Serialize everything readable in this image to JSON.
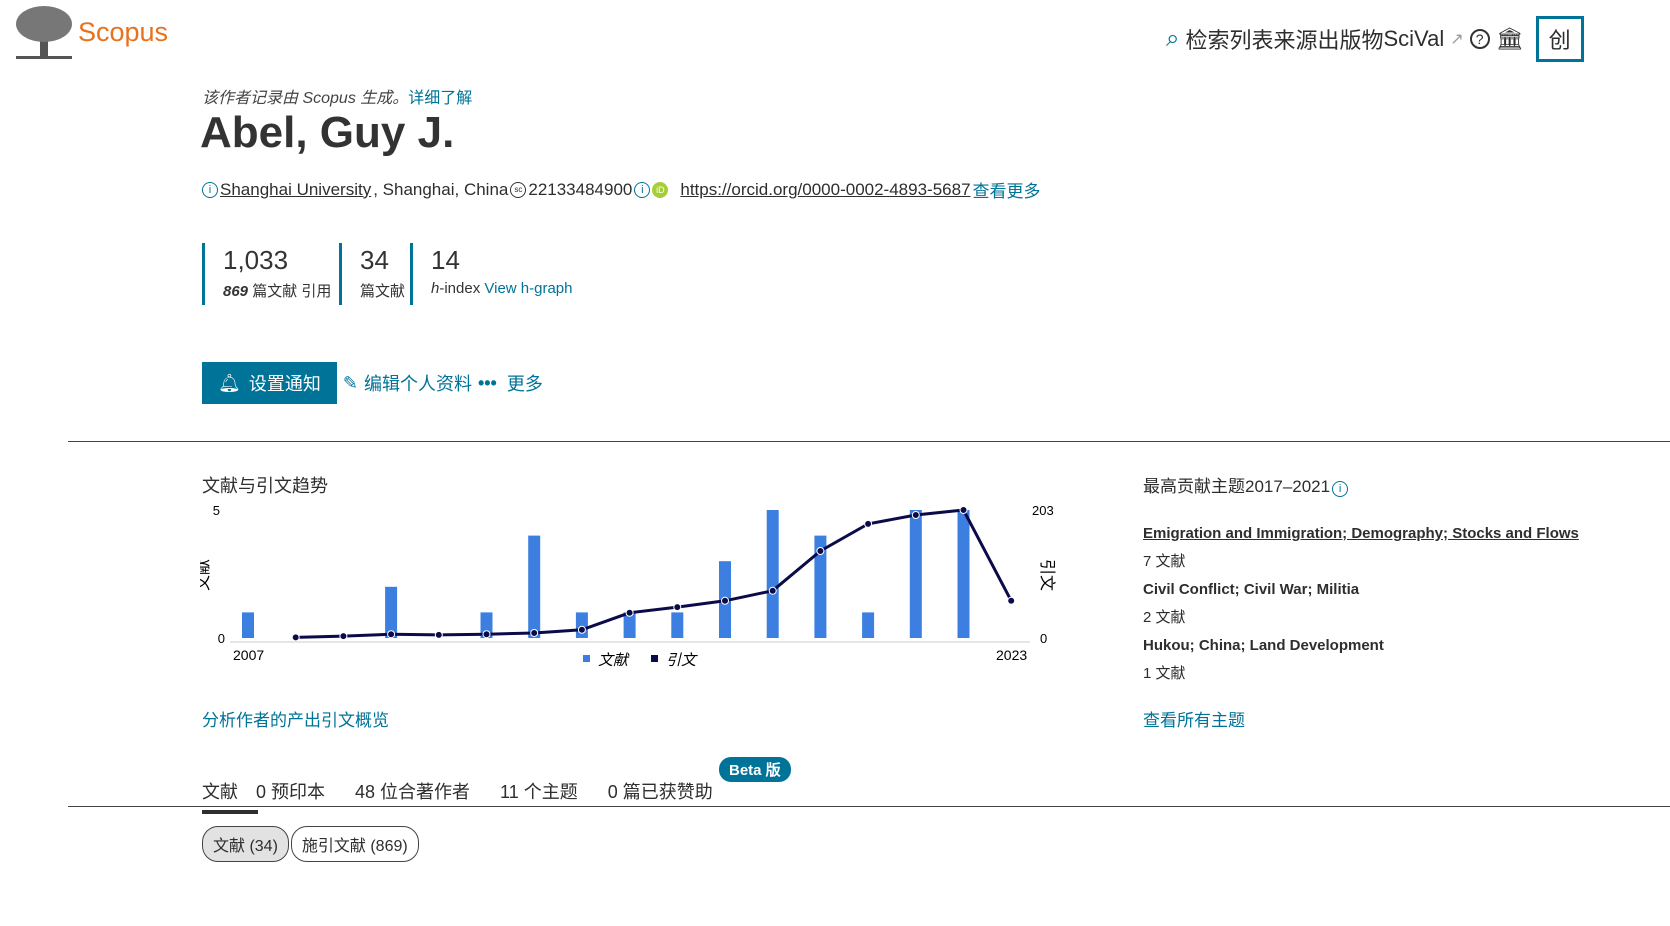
{
  "header": {
    "logo_text": "Scopus",
    "nav": [
      "检索",
      "列表",
      "来源出版物",
      "SciVal"
    ],
    "create_button": "创"
  },
  "profile": {
    "note": "该作者记录由 Scopus 生成。",
    "note_link": "详细了解",
    "name": "Abel, Guy J.",
    "affiliation_link": "Shanghai University",
    "affiliation_rest": ", Shanghai, China",
    "scopus_id": "22133484900",
    "orcid": "https://orcid.org/0000-0002-4893-5687",
    "see_more": "查看更多"
  },
  "metrics": [
    {
      "value": "1,033",
      "label_num": "869",
      "label": " 篇文献 引用"
    },
    {
      "value": "34",
      "label": "篇文献"
    },
    {
      "value": "14",
      "label_italic": "h",
      "label": "-index ",
      "link": "View h-graph"
    }
  ],
  "actions": {
    "notify": "设置通知",
    "edit": "编辑个人资料",
    "more": "更多"
  },
  "chart_section": {
    "title": "文献与引文趋势",
    "analyze_link": "分析作者的产出引文概览"
  },
  "chart_data": {
    "type": "bar+line",
    "title": "文献与引文趋势",
    "ylabel": "文献",
    "y2label": "引文",
    "ylim": [
      0,
      5
    ],
    "y2lim": [
      0,
      203
    ],
    "x": [
      2007,
      2008,
      2009,
      2010,
      2011,
      2012,
      2013,
      2014,
      2015,
      2016,
      2017,
      2018,
      2019,
      2020,
      2021,
      2022,
      2023
    ],
    "xtick_labels": [
      "2007",
      "2023"
    ],
    "ytick_labels": [
      "0",
      "5"
    ],
    "y2tick_labels": [
      "0",
      "203"
    ],
    "series": [
      {
        "name": "文献",
        "type": "bar",
        "color": "#3c7fe0",
        "values": [
          1,
          0,
          0,
          2,
          0,
          1,
          4,
          1,
          1,
          1,
          3,
          5,
          4,
          1,
          5,
          5,
          0
        ]
      },
      {
        "name": "引文",
        "type": "line",
        "color": "#0b0b4a",
        "values": [
          null,
          1,
          3,
          6,
          5,
          6,
          8,
          13,
          40,
          49,
          59,
          75,
          138,
          181,
          195,
          203,
          59
        ]
      }
    ],
    "legend": "bottom"
  },
  "topics": {
    "title": "最高贡献主题2017–2021",
    "items": [
      {
        "name": "Emigration and Immigration; Demography; Stocks and Flows",
        "count": "7 文献"
      },
      {
        "name": "Civil Conflict; Civil War; Militia",
        "count": "2 文献"
      },
      {
        "name": "Hukou; China; Land Development",
        "count": "1 文献"
      }
    ],
    "all_link": "查看所有主题"
  },
  "tabs": [
    "文献",
    "0 预印本",
    "48 位合著作者",
    "11 个主题",
    "0 篇已获赞助"
  ],
  "beta_badge": "Beta 版",
  "chips": [
    "文献 (34)",
    "施引文献 (869)"
  ]
}
